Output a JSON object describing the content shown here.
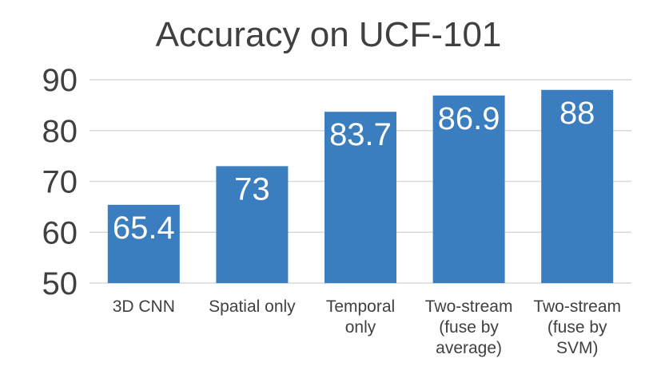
{
  "chart_data": {
    "type": "bar",
    "title": "Accuracy on UCF-101",
    "categories": [
      [
        "3D CNN"
      ],
      [
        "Spatial only"
      ],
      [
        "Temporal",
        "only"
      ],
      [
        "Two-stream",
        "(fuse by",
        "average)"
      ],
      [
        "Two-stream",
        "(fuse by",
        "SVM)"
      ]
    ],
    "values": [
      65.4,
      73,
      83.7,
      86.9,
      88
    ],
    "value_labels": [
      "65.4",
      "73",
      "83.7",
      "86.9",
      "88"
    ],
    "ylim": [
      50,
      90
    ],
    "yticks": [
      50,
      60,
      70,
      80,
      90
    ],
    "grid": true,
    "bar_color": "#3a7ebf",
    "grid_color": "#d9d9d9",
    "text_color": "#404040"
  }
}
